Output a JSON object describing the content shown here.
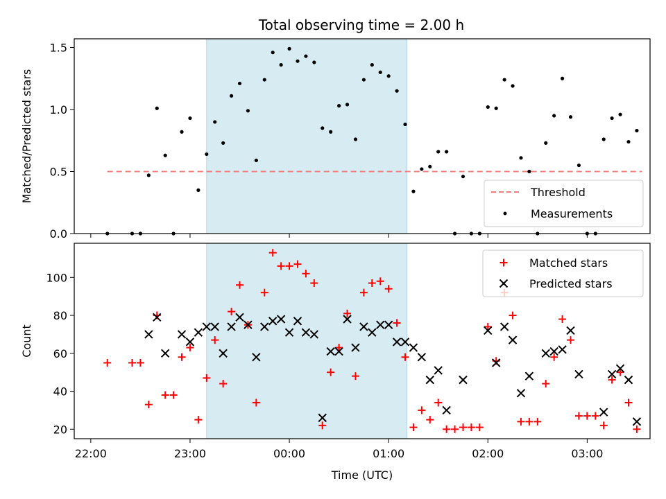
{
  "title": "Total observing time = 2.00 h",
  "colors": {
    "threshold": "#f08080",
    "measurement": "#000000",
    "matched": "#ff0000",
    "predicted": "#000000",
    "shade_fill": "#add8e6",
    "axes": "#000000"
  },
  "chart_data": [
    {
      "type": "scatter",
      "ylabel": "Matched/Predicted stars",
      "xlabel": "",
      "x_unit": "minutes after 22:00 UTC",
      "xlim": [
        -10,
        338
      ],
      "ylim": [
        0.0,
        1.57
      ],
      "y_ticks": [
        0.0,
        0.5,
        1.0,
        1.5
      ],
      "y_tick_labels": [
        "0.0",
        "0.5",
        "1.0",
        "1.5"
      ],
      "x_ticks": [
        0,
        60,
        120,
        180,
        240,
        300
      ],
      "shaded_region": [
        70,
        191
      ],
      "legend": {
        "position": "lower right",
        "entries": [
          "Threshold",
          "Measurements"
        ]
      },
      "threshold": {
        "name": "Threshold",
        "y": 0.5,
        "x": [
          10,
          333
        ],
        "style": "dashed"
      },
      "series": [
        {
          "name": "Measurements",
          "marker": "dot",
          "points": [
            [
              10,
              0.0
            ],
            [
              25,
              0.0
            ],
            [
              30,
              0.0
            ],
            [
              35,
              0.47
            ],
            [
              40,
              1.01
            ],
            [
              45,
              0.63
            ],
            [
              50,
              0.0
            ],
            [
              55,
              0.82
            ],
            [
              60,
              0.93
            ],
            [
              65,
              0.35
            ],
            [
              70,
              0.64
            ],
            [
              75,
              0.9
            ],
            [
              80,
              0.73
            ],
            [
              85,
              1.11
            ],
            [
              90,
              1.21
            ],
            [
              95,
              0.99
            ],
            [
              100,
              0.59
            ],
            [
              105,
              1.24
            ],
            [
              110,
              1.46
            ],
            [
              115,
              1.36
            ],
            [
              120,
              1.49
            ],
            [
              125,
              1.39
            ],
            [
              130,
              1.43
            ],
            [
              135,
              1.38
            ],
            [
              140,
              0.85
            ],
            [
              145,
              0.82
            ],
            [
              150,
              1.03
            ],
            [
              155,
              1.04
            ],
            [
              160,
              0.76
            ],
            [
              165,
              1.24
            ],
            [
              170,
              1.36
            ],
            [
              175,
              1.3
            ],
            [
              180,
              1.27
            ],
            [
              185,
              1.15
            ],
            [
              190,
              0.88
            ],
            [
              195,
              0.34
            ],
            [
              200,
              0.52
            ],
            [
              205,
              0.54
            ],
            [
              210,
              0.66
            ],
            [
              215,
              0.66
            ],
            [
              220,
              0.0
            ],
            [
              225,
              0.46
            ],
            [
              230,
              0.0
            ],
            [
              235,
              0.0
            ],
            [
              240,
              1.02
            ],
            [
              245,
              1.01
            ],
            [
              250,
              1.24
            ],
            [
              255,
              1.19
            ],
            [
              260,
              0.61
            ],
            [
              265,
              0.5
            ],
            [
              270,
              0.0
            ],
            [
              275,
              0.73
            ],
            [
              280,
              0.95
            ],
            [
              285,
              1.25
            ],
            [
              290,
              0.94
            ],
            [
              295,
              0.55
            ],
            [
              300,
              0.0
            ],
            [
              305,
              0.0
            ],
            [
              310,
              0.76
            ],
            [
              315,
              0.93
            ],
            [
              320,
              0.96
            ],
            [
              325,
              0.74
            ],
            [
              330,
              0.83
            ]
          ]
        }
      ]
    },
    {
      "type": "scatter",
      "ylabel": "Count",
      "xlabel": "Time (UTC)",
      "x_unit": "minutes after 22:00 UTC",
      "xlim": [
        -10,
        338
      ],
      "ylim": [
        15,
        118
      ],
      "y_ticks": [
        20,
        40,
        60,
        80,
        100
      ],
      "y_tick_labels": [
        "20",
        "40",
        "60",
        "80",
        "100"
      ],
      "x_ticks": [
        0,
        60,
        120,
        180,
        240,
        300
      ],
      "x_tick_labels": [
        "22:00",
        "23:00",
        "00:00",
        "01:00",
        "02:00",
        "03:00"
      ],
      "shaded_region": [
        70,
        191
      ],
      "legend": {
        "position": "upper right",
        "entries": [
          "Matched stars",
          "Predicted stars"
        ]
      },
      "series": [
        {
          "name": "Matched stars",
          "marker": "plus",
          "points": [
            [
              10,
              55
            ],
            [
              25,
              55
            ],
            [
              30,
              55
            ],
            [
              35,
              33
            ],
            [
              40,
              80
            ],
            [
              45,
              38
            ],
            [
              50,
              38
            ],
            [
              55,
              58
            ],
            [
              60,
              63
            ],
            [
              65,
              25
            ],
            [
              70,
              47
            ],
            [
              75,
              67
            ],
            [
              80,
              44
            ],
            [
              85,
              82
            ],
            [
              90,
              96
            ],
            [
              95,
              75
            ],
            [
              100,
              34
            ],
            [
              105,
              92
            ],
            [
              110,
              113
            ],
            [
              115,
              106
            ],
            [
              120,
              106
            ],
            [
              125,
              107
            ],
            [
              130,
              102
            ],
            [
              135,
              97
            ],
            [
              140,
              22
            ],
            [
              145,
              50
            ],
            [
              150,
              63
            ],
            [
              155,
              81
            ],
            [
              160,
              48
            ],
            [
              165,
              92
            ],
            [
              170,
              97
            ],
            [
              175,
              98
            ],
            [
              180,
              94
            ],
            [
              185,
              76
            ],
            [
              190,
              58
            ],
            [
              195,
              21
            ],
            [
              200,
              30
            ],
            [
              205,
              25
            ],
            [
              210,
              34
            ],
            [
              215,
              20
            ],
            [
              220,
              20
            ],
            [
              225,
              21
            ],
            [
              230,
              21
            ],
            [
              235,
              21
            ],
            [
              240,
              74
            ],
            [
              245,
              56
            ],
            [
              250,
              92
            ],
            [
              255,
              80
            ],
            [
              260,
              24
            ],
            [
              265,
              24
            ],
            [
              270,
              24
            ],
            [
              275,
              44
            ],
            [
              280,
              58
            ],
            [
              285,
              78
            ],
            [
              290,
              67
            ],
            [
              295,
              27
            ],
            [
              300,
              27
            ],
            [
              305,
              27
            ],
            [
              310,
              22
            ],
            [
              315,
              46
            ],
            [
              320,
              50
            ],
            [
              325,
              34
            ],
            [
              330,
              20
            ]
          ]
        },
        {
          "name": "Predicted stars",
          "marker": "x",
          "points": [
            [
              35,
              70
            ],
            [
              40,
              79
            ],
            [
              45,
              60
            ],
            [
              55,
              70
            ],
            [
              60,
              66
            ],
            [
              65,
              71
            ],
            [
              70,
              74
            ],
            [
              75,
              74
            ],
            [
              80,
              60
            ],
            [
              85,
              74
            ],
            [
              90,
              79
            ],
            [
              95,
              75
            ],
            [
              100,
              58
            ],
            [
              105,
              74
            ],
            [
              110,
              77
            ],
            [
              115,
              78
            ],
            [
              120,
              71
            ],
            [
              125,
              77
            ],
            [
              130,
              71
            ],
            [
              135,
              70
            ],
            [
              140,
              26
            ],
            [
              145,
              61
            ],
            [
              150,
              61
            ],
            [
              155,
              78
            ],
            [
              160,
              63
            ],
            [
              165,
              74
            ],
            [
              170,
              71
            ],
            [
              175,
              75
            ],
            [
              180,
              75
            ],
            [
              185,
              66
            ],
            [
              190,
              66
            ],
            [
              195,
              63
            ],
            [
              200,
              58
            ],
            [
              205,
              46
            ],
            [
              210,
              51
            ],
            [
              215,
              30
            ],
            [
              225,
              46
            ],
            [
              240,
              72
            ],
            [
              245,
              55
            ],
            [
              250,
              74
            ],
            [
              255,
              67
            ],
            [
              260,
              39
            ],
            [
              265,
              48
            ],
            [
              275,
              60
            ],
            [
              280,
              61
            ],
            [
              285,
              62
            ],
            [
              290,
              72
            ],
            [
              295,
              49
            ],
            [
              310,
              29
            ],
            [
              315,
              49
            ],
            [
              320,
              52
            ],
            [
              325,
              46
            ],
            [
              330,
              24
            ]
          ]
        }
      ]
    }
  ]
}
